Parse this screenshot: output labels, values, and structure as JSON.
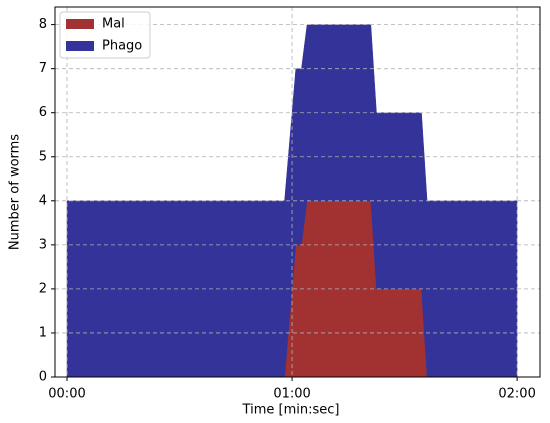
{
  "chart_data": {
    "type": "stackedarea",
    "xlabel": "Time [min:sec]",
    "ylabel": "Number of worms",
    "x": [
      0,
      58,
      61,
      62.5,
      64,
      81,
      82.5,
      94.5,
      96,
      120
    ],
    "series": [
      {
        "name": "Mal",
        "color": "#a23232",
        "values": [
          0,
          0,
          3,
          3,
          4,
          4,
          2,
          2,
          0,
          0
        ]
      },
      {
        "name": "Phago",
        "color": "#333399",
        "values": [
          4,
          4,
          4,
          4,
          4,
          4,
          4,
          4,
          4,
          4
        ]
      }
    ],
    "xlim": [
      -3.2,
      126.1
    ],
    "ylim": [
      0,
      8.4
    ],
    "xticks": [
      {
        "value": 0,
        "label": "00:00"
      },
      {
        "value": 60,
        "label": "01:00"
      },
      {
        "value": 120,
        "label": "02:00"
      }
    ],
    "yticks": [
      0,
      1,
      2,
      3,
      4,
      5,
      6,
      7,
      8
    ],
    "grid": true,
    "legend": "upper-left"
  }
}
